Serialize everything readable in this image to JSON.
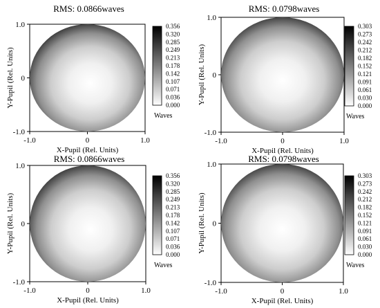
{
  "chart_data": [
    {
      "type": "heatmap",
      "title": "RMS: 0.0866waves",
      "xlabel": "X-Pupil (Rel. Units)",
      "ylabel": "Y-Pupil (Rel. Units)",
      "xticks": [
        "-1.0",
        "0",
        "1.0"
      ],
      "yticks": [
        "1.0",
        "0",
        "-1.0"
      ],
      "xlim": [
        -1.0,
        1.0
      ],
      "ylim": [
        -1.0,
        1.0
      ],
      "colorbar": {
        "ticks": [
          "0.356",
          "0.320",
          "0.285",
          "0.249",
          "0.213",
          "0.178",
          "0.142",
          "0.107",
          "0.071",
          "0.036",
          "0.000"
        ],
        "range": [
          0.0,
          0.356
        ],
        "unit": "Waves",
        "colormap": "grayscale, white=low, black=high"
      },
      "center": [
        0.05,
        -0.1
      ]
    },
    {
      "type": "heatmap",
      "title": "RMS: 0.0798waves",
      "xlabel": "X-Pupil (Rel. Units)",
      "ylabel": "Y-Pupil (Rel. Units)",
      "xticks": [
        "-1.0",
        "0",
        "1.0"
      ],
      "yticks": [
        "1.0",
        "0",
        "-1.0"
      ],
      "xlim": [
        -1.0,
        1.0
      ],
      "ylim": [
        -1.0,
        1.0
      ],
      "colorbar": {
        "ticks": [
          "0.303",
          "0.273",
          "0.242",
          "0.212",
          "0.182",
          "0.152",
          "0.121",
          "0.091",
          "0.061",
          "0.030",
          "0.000"
        ],
        "range": [
          0.0,
          0.303
        ],
        "unit": "Waves",
        "colormap": "grayscale, white=low, black=high"
      },
      "center": [
        0.0,
        -0.1
      ]
    },
    {
      "type": "heatmap",
      "title": "RMS: 0.0866waves",
      "xlabel": "X-Pupil (Rel. Units)",
      "ylabel": "Y-Pupil (Rel. Units)",
      "xticks": [
        "-1.0",
        "0",
        "1.0"
      ],
      "yticks": [
        "1.0",
        "0",
        "-1.0"
      ],
      "xlim": [
        -1.0,
        1.0
      ],
      "ylim": [
        -1.0,
        1.0
      ],
      "colorbar": {
        "ticks": [
          "0.356",
          "0.320",
          "0.285",
          "0.249",
          "0.213",
          "0.178",
          "0.142",
          "0.107",
          "0.071",
          "0.036",
          "0.000"
        ],
        "range": [
          0.0,
          0.356
        ],
        "unit": "Waves",
        "colormap": "grayscale, white=low, black=high"
      },
      "center": [
        0.05,
        -0.1
      ]
    },
    {
      "type": "heatmap",
      "title": "RMS: 0.0798waves",
      "xlabel": "X-Pupil (Rel. Units)",
      "ylabel": "Y-Pupil (Rel. Units)",
      "xticks": [
        "-1.0",
        "0",
        "1.0"
      ],
      "yticks": [
        "1.0",
        "0",
        "-1.0"
      ],
      "xlim": [
        -1.0,
        1.0
      ],
      "ylim": [
        -1.0,
        1.0
      ],
      "colorbar": {
        "ticks": [
          "0.303",
          "0.273",
          "0.242",
          "0.212",
          "0.182",
          "0.152",
          "0.121",
          "0.091",
          "0.061",
          "0.030",
          "0.000"
        ],
        "range": [
          0.0,
          0.303
        ],
        "unit": "Waves",
        "colormap": "grayscale, white=low, black=high"
      },
      "center": [
        0.0,
        -0.1
      ]
    }
  ]
}
